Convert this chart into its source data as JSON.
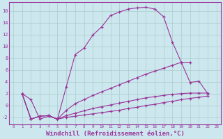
{
  "background_color": "#cce8ee",
  "grid_color": "#aacccc",
  "line_color": "#993399",
  "xlabel": "Windchill (Refroidissement éolien,°C)",
  "xlabel_fontsize": 6.5,
  "ytick_values": [
    -2,
    0,
    2,
    4,
    6,
    8,
    10,
    12,
    14,
    16
  ],
  "xlim": [
    -0.5,
    23.5
  ],
  "ylim": [
    -3.2,
    17.5
  ],
  "series": [
    {
      "x": [
        1,
        2,
        3,
        4,
        5,
        6,
        7,
        8,
        9,
        10,
        11,
        12,
        13,
        14,
        15,
        16,
        17,
        18,
        19,
        20,
        21,
        22
      ],
      "y": [
        2.0,
        1.0,
        -2.3,
        -1.8,
        -2.3,
        3.2,
        8.6,
        9.7,
        11.9,
        13.3,
        15.2,
        15.8,
        16.3,
        16.5,
        16.6,
        16.3,
        15.0,
        10.7,
        7.3,
        3.9,
        4.1,
        2.0
      ]
    },
    {
      "x": [
        1,
        2,
        3,
        4,
        5,
        6,
        7,
        8,
        9,
        10,
        11,
        12,
        13,
        14,
        15,
        16,
        17,
        18,
        19,
        20
      ],
      "y": [
        2.0,
        -2.3,
        -1.8,
        -1.7,
        -2.3,
        -0.8,
        0.3,
        1.0,
        1.7,
        2.3,
        2.9,
        3.5,
        4.1,
        4.7,
        5.3,
        5.8,
        6.3,
        6.8,
        7.3,
        7.3
      ]
    },
    {
      "x": [
        1,
        2,
        3,
        4,
        5,
        6,
        7,
        8,
        9,
        10,
        11,
        12,
        13,
        14,
        15,
        16,
        17,
        18,
        19,
        20,
        21,
        22
      ],
      "y": [
        2.0,
        -2.3,
        -1.8,
        -1.7,
        -2.3,
        -1.7,
        -1.3,
        -0.9,
        -0.5,
        -0.2,
        0.1,
        0.4,
        0.7,
        1.0,
        1.3,
        1.5,
        1.7,
        1.9,
        2.0,
        2.1,
        2.1,
        2.1
      ]
    },
    {
      "x": [
        1,
        2,
        3,
        4,
        5,
        6,
        7,
        8,
        9,
        10,
        11,
        12,
        13,
        14,
        15,
        16,
        17,
        18,
        19,
        20,
        21,
        22
      ],
      "y": [
        2.0,
        -2.3,
        -1.8,
        -1.7,
        -2.3,
        -2.0,
        -1.8,
        -1.6,
        -1.4,
        -1.2,
        -1.0,
        -0.8,
        -0.5,
        -0.3,
        0.0,
        0.2,
        0.5,
        0.7,
        1.0,
        1.2,
        1.4,
        1.6
      ]
    }
  ]
}
